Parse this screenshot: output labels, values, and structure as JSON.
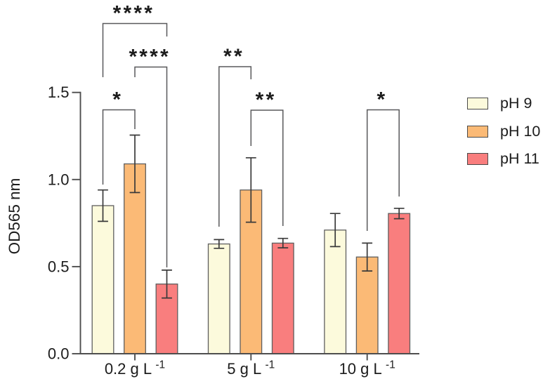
{
  "figure": {
    "background": "#ffffff"
  },
  "chart_data": {
    "type": "bar",
    "title": "",
    "xlabel": "",
    "ylabel": "OD565 nm",
    "ylim": [
      0,
      1.5
    ],
    "ytick_labels": [
      "0.0",
      "0.5",
      "1.0",
      "1.5"
    ],
    "ytick_values": [
      0,
      0.5,
      1.0,
      1.5
    ],
    "grid": false,
    "legend_position": "right-outside",
    "error_bars": "sd, both directions, with caps",
    "categories": [
      {
        "base": "0.2 g L",
        "sup": "-1"
      },
      {
        "base": "5 g L",
        "sup": "-1"
      },
      {
        "base": "10 g L",
        "sup": "-1"
      }
    ],
    "series": [
      {
        "name": "pH 9",
        "color": "#FCFADC",
        "values": [
          0.85,
          0.63,
          0.71
        ],
        "errors": [
          0.09,
          0.025,
          0.095
        ]
      },
      {
        "name": "pH 10",
        "color": "#FBBA76",
        "values": [
          1.09,
          0.94,
          0.555
        ],
        "errors": [
          0.165,
          0.185,
          0.08
        ]
      },
      {
        "name": "pH 11",
        "color": "#F97E7E",
        "values": [
          0.4,
          0.635,
          0.805
        ],
        "errors": [
          0.08,
          0.027,
          0.03
        ]
      }
    ],
    "significance": [
      {
        "category_index": 0,
        "series_pair": [
          "pH 9",
          "pH 11"
        ],
        "label": "****"
      },
      {
        "category_index": 0,
        "series_pair": [
          "pH 10",
          "pH 11"
        ],
        "label": "****"
      },
      {
        "category_index": 0,
        "series_pair": [
          "pH 9",
          "pH 10"
        ],
        "label": "*"
      },
      {
        "category_index": 1,
        "series_pair": [
          "pH 9",
          "pH 10"
        ],
        "label": "**"
      },
      {
        "category_index": 1,
        "series_pair": [
          "pH 10",
          "pH 11"
        ],
        "label": "**"
      },
      {
        "category_index": 2,
        "series_pair": [
          "pH 10",
          "pH 11"
        ],
        "label": "*"
      }
    ]
  }
}
